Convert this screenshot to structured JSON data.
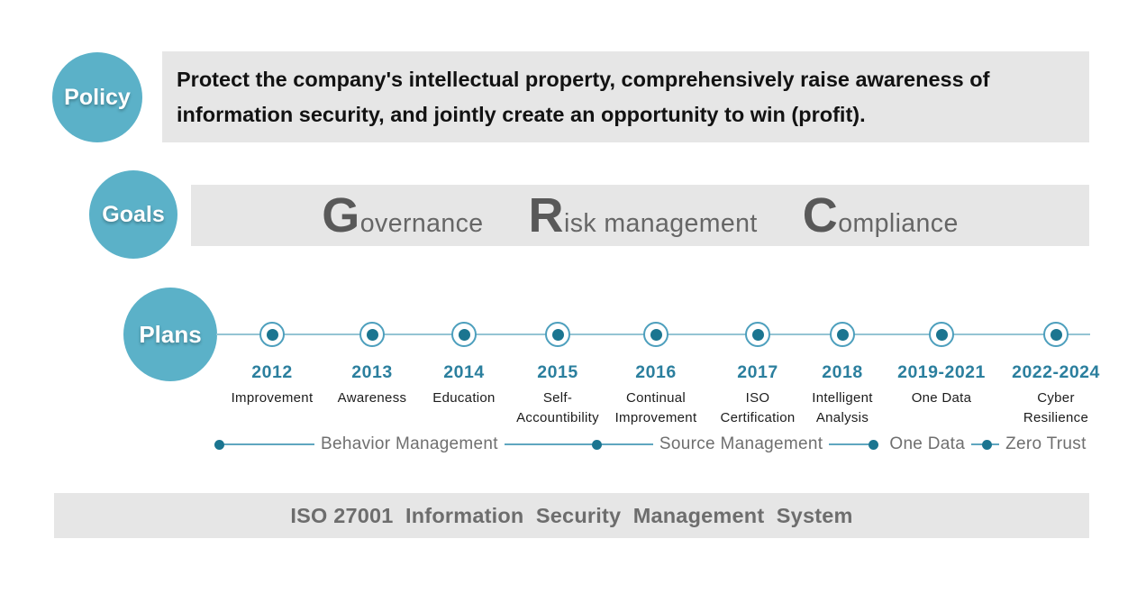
{
  "colors": {
    "bubble_teal": "#5bb1c8",
    "dark_teal_dot": "#1b7590",
    "node_ring": "#4d9fbd",
    "timeline_line": "#94c4d3",
    "year_text": "#2b7f9e",
    "gray_box": "#e6e6e6",
    "goals_text": "#666666",
    "banner_text": "#6d6d6d",
    "phase_text": "#6f6f6f"
  },
  "policy": {
    "label": "Policy",
    "lines": [
      "Protect the company's intellectual property, comprehensively raise awareness of",
      "information security, and jointly create an opportunity to win (profit)."
    ]
  },
  "goals": {
    "label": "Goals",
    "terms": [
      {
        "initial": "G",
        "rest": "overnance"
      },
      {
        "initial": "R",
        "rest": "isk management"
      },
      {
        "initial": "C",
        "rest": "ompliance"
      }
    ]
  },
  "plans": {
    "label": "Plans",
    "milestones": [
      {
        "year": "2012",
        "label": "Improvement"
      },
      {
        "year": "2013",
        "label": "Awareness"
      },
      {
        "year": "2014",
        "label": "Education"
      },
      {
        "year": "2015",
        "label": "Self-\nAccountibility"
      },
      {
        "year": "2016",
        "label": "Continual\nImprovement"
      },
      {
        "year": "2017",
        "label": "ISO\nCertification"
      },
      {
        "year": "2018",
        "label": "Intelligent\nAnalysis"
      },
      {
        "year": "2019-2021",
        "label": "One Data"
      },
      {
        "year": "2022-2024",
        "label": "Cyber\nResilience"
      }
    ],
    "phases": [
      {
        "label": "Behavior Management"
      },
      {
        "label": "Source Management"
      },
      {
        "label": "One Data"
      },
      {
        "label": "Zero Trust"
      }
    ]
  },
  "banner": {
    "text": "ISO 27001  Information  Security  Management  System"
  }
}
